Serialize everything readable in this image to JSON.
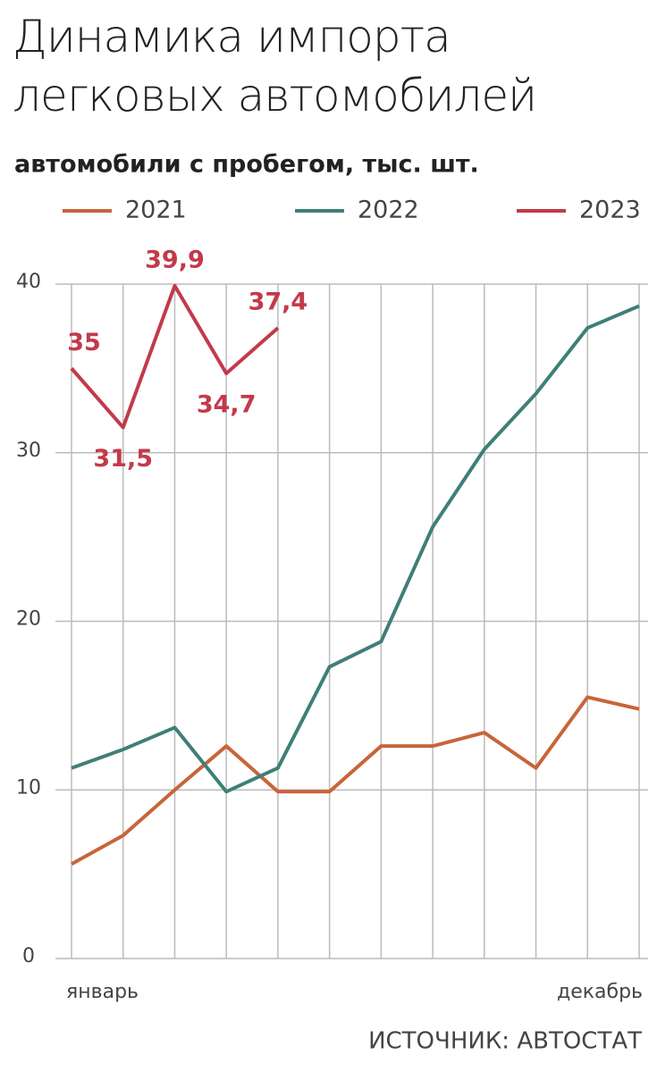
{
  "chart_data": {
    "type": "line",
    "title": "Динамика импорта легковых автомобилей",
    "subtitle": "автомобили с пробегом, тыс. шт.",
    "source": "ИСТОЧНИК: АВТОСТАТ",
    "categories": [
      "январь",
      null,
      null,
      null,
      null,
      null,
      null,
      null,
      null,
      null,
      null,
      "декабрь"
    ],
    "series": [
      {
        "name": "2021",
        "color": "#c8643a",
        "values": [
          5.6,
          7.3,
          10.0,
          12.6,
          9.9,
          9.9,
          12.6,
          12.6,
          13.4,
          11.3,
          15.5,
          14.8
        ]
      },
      {
        "name": "2022",
        "color": "#3f7f78",
        "values": [
          11.3,
          12.4,
          13.7,
          9.9,
          11.3,
          17.3,
          18.8,
          25.6,
          30.2,
          33.5,
          37.4,
          38.7
        ]
      },
      {
        "name": "2023",
        "color": "#c23a4a",
        "values": [
          35,
          31.5,
          39.9,
          34.7,
          37.4,
          null,
          null,
          null,
          null,
          null,
          null,
          null
        ],
        "value_labels": [
          "35",
          "31,5",
          "39,9",
          "34,7",
          "37,4",
          null,
          null,
          null,
          null,
          null,
          null,
          null
        ]
      }
    ],
    "ylim": [
      0,
      40
    ],
    "yticks": [
      0,
      10,
      20,
      30,
      40
    ],
    "grid": true
  }
}
